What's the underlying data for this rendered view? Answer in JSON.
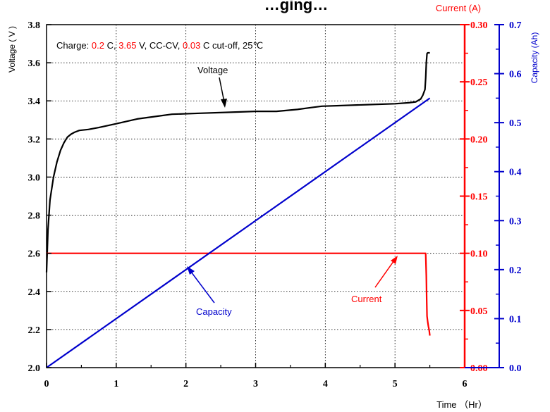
{
  "chart_data": {
    "type": "line",
    "title": "…ging…",
    "xlabel": "Time （Hr）",
    "ylabel_left": "Voltage ( V )",
    "ylabel_right_current": "Current (A)",
    "ylabel_right_capacity": "Capacity (Ah)",
    "xlim": [
      0,
      6
    ],
    "ylim_voltage": [
      2.0,
      3.8
    ],
    "ylim_current": [
      0.0,
      0.3
    ],
    "ylim_capacity": [
      0.0,
      0.7
    ],
    "x_ticks": [
      "0",
      "1",
      "2",
      "3",
      "4",
      "5",
      "6"
    ],
    "voltage_ticks": [
      "2.0",
      "2.2",
      "2.4",
      "2.6",
      "2.8",
      "3.0",
      "3.2",
      "3.4",
      "3.6",
      "3.8"
    ],
    "current_ticks": [
      "0.00",
      "0.05",
      "0.10",
      "0.15",
      "0.20",
      "0.25",
      "0.30"
    ],
    "capacity_ticks": [
      "0.0",
      "0.1",
      "0.2",
      "0.3",
      "0.4",
      "0.5",
      "0.6",
      "0.7"
    ],
    "grid": true,
    "colors": {
      "voltage": "#000000",
      "current": "#ff0000",
      "capacity": "#0000cc"
    },
    "series": [
      {
        "name": "Voltage",
        "axis": "voltage",
        "x": [
          0.0,
          0.02,
          0.05,
          0.1,
          0.15,
          0.2,
          0.25,
          0.3,
          0.35,
          0.4,
          0.47,
          0.6,
          0.75,
          1.0,
          1.3,
          1.6,
          1.8,
          2.2,
          2.6,
          3.0,
          3.3,
          3.6,
          3.8,
          3.95,
          4.2,
          4.6,
          5.0,
          5.2,
          5.3,
          5.37,
          5.4,
          5.43,
          5.44,
          5.45,
          5.46,
          5.47,
          5.48,
          5.5
        ],
        "y": [
          2.5,
          2.72,
          2.88,
          3.0,
          3.08,
          3.14,
          3.18,
          3.21,
          3.225,
          3.235,
          3.245,
          3.25,
          3.26,
          3.28,
          3.305,
          3.32,
          3.33,
          3.335,
          3.34,
          3.345,
          3.345,
          3.355,
          3.365,
          3.372,
          3.375,
          3.38,
          3.385,
          3.39,
          3.395,
          3.41,
          3.43,
          3.46,
          3.52,
          3.6,
          3.648,
          3.652,
          3.652,
          3.652
        ]
      },
      {
        "name": "Current",
        "axis": "current",
        "x": [
          0.0,
          5.44,
          5.44,
          5.45,
          5.455,
          5.46,
          5.47,
          5.48,
          5.49,
          5.5
        ],
        "y": [
          0.1,
          0.1,
          0.1,
          0.08,
          0.06,
          0.045,
          0.04,
          0.036,
          0.033,
          0.028
        ]
      },
      {
        "name": "Capacity",
        "axis": "capacity",
        "x": [
          0.0,
          5.5
        ],
        "y": [
          0.0,
          0.55
        ]
      }
    ],
    "annotations": [
      {
        "label": "Charge:",
        "parts": [
          {
            "text": "Charge: ",
            "color": "#000000"
          },
          {
            "text": "0.2",
            "color": "#ff0000"
          },
          {
            "text": " C, ",
            "color": "#000000"
          },
          {
            "text": "3.65",
            "color": "#ff0000"
          },
          {
            "text": " V, CC-CV, ",
            "color": "#000000"
          },
          {
            "text": "0.03",
            "color": "#ff0000"
          },
          {
            "text": " C cut-off, 25℃",
            "color": "#000000"
          }
        ]
      },
      {
        "label": "Voltage",
        "color": "#000000"
      },
      {
        "label": "Capacity",
        "color": "#0000cc"
      },
      {
        "label": "Current",
        "color": "#ff0000"
      }
    ]
  }
}
